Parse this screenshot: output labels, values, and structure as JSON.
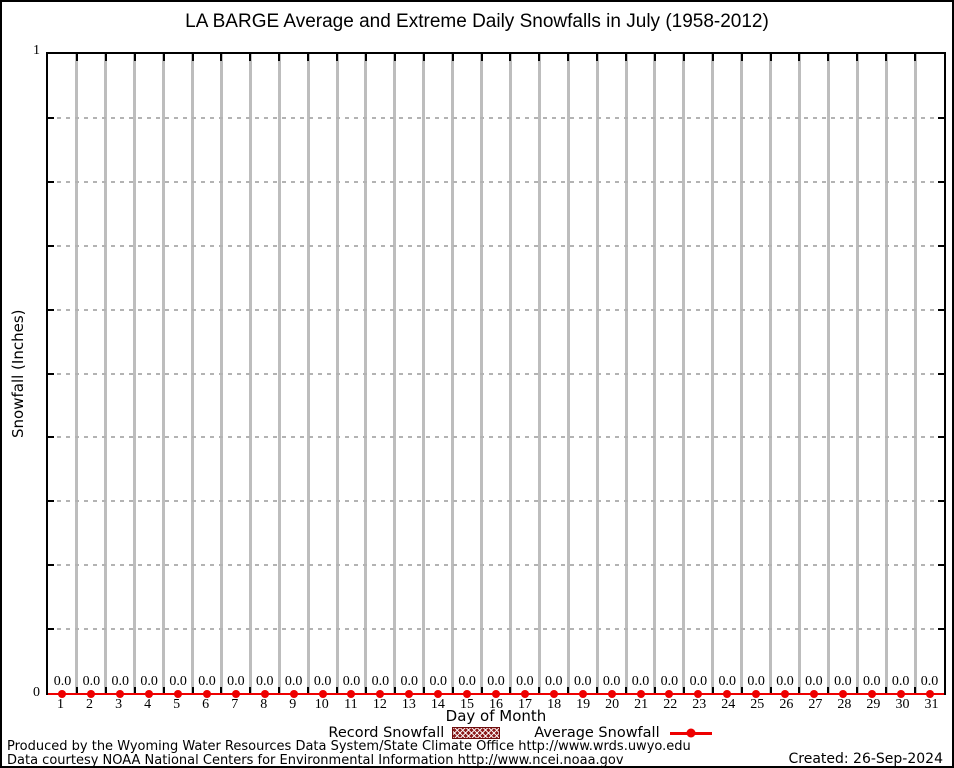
{
  "title": "LA BARGE Average and Extreme Daily Snowfalls in July (1958-2012)",
  "y_axis": {
    "title": "Snowfall (Inches)",
    "max_label": "1",
    "min_label": "0"
  },
  "x_axis": {
    "title": "Day of Month"
  },
  "legend": {
    "record": {
      "label": "Record Snowfall",
      "color": "#8b1a1a"
    },
    "average": {
      "label": "Average Snowfall",
      "color": "#ee0000"
    }
  },
  "footer": {
    "produced_by": "Produced by the Wyoming Water Resources Data System/State Climate Office http://www.wrds.uwyo.edu",
    "data_courtesy": "Data courtesy NOAA National Centers for Environmental Information http://www.ncei.noaa.gov",
    "created": "Created: 26-Sep-2024"
  },
  "chart_data": {
    "type": "line",
    "title": "LA BARGE Average and Extreme Daily Snowfalls in July (1958-2012)",
    "xlabel": "Day of Month",
    "ylabel": "Snowfall (Inches)",
    "x": [
      1,
      2,
      3,
      4,
      5,
      6,
      7,
      8,
      9,
      10,
      11,
      12,
      13,
      14,
      15,
      16,
      17,
      18,
      19,
      20,
      21,
      22,
      23,
      24,
      25,
      26,
      27,
      28,
      29,
      30,
      31
    ],
    "series": [
      {
        "name": "Record Snowfall",
        "style": "hatched-bar",
        "color": "#8b1a1a",
        "values": [
          0,
          0,
          0,
          0,
          0,
          0,
          0,
          0,
          0,
          0,
          0,
          0,
          0,
          0,
          0,
          0,
          0,
          0,
          0,
          0,
          0,
          0,
          0,
          0,
          0,
          0,
          0,
          0,
          0,
          0,
          0
        ]
      },
      {
        "name": "Average Snowfall",
        "style": "line-with-point-markers",
        "color": "#ee0000",
        "values": [
          0.0,
          0.0,
          0.0,
          0.0,
          0.0,
          0.0,
          0.0,
          0.0,
          0.0,
          0.0,
          0.0,
          0.0,
          0.0,
          0.0,
          0.0,
          0.0,
          0.0,
          0.0,
          0.0,
          0.0,
          0.0,
          0.0,
          0.0,
          0.0,
          0.0,
          0.0,
          0.0,
          0.0,
          0.0,
          0.0,
          0.0
        ]
      }
    ],
    "point_labels": [
      "0.0",
      "0.0",
      "0.0",
      "0.0",
      "0.0",
      "0.0",
      "0.0",
      "0.0",
      "0.0",
      "0.0",
      "0.0",
      "0.0",
      "0.0",
      "0.0",
      "0.0",
      "0.0",
      "0.0",
      "0.0",
      "0.0",
      "0.0",
      "0.0",
      "0.0",
      "0.0",
      "0.0",
      "0.0",
      "0.0",
      "0.0",
      "0.0",
      "0.0",
      "0.0",
      "0.0"
    ],
    "xlim": [
      0.5,
      31.5
    ],
    "ylim": [
      0,
      1
    ],
    "y_tick_step": 0.1,
    "y_labeled_ticks": [
      "0",
      "1"
    ],
    "grid": {
      "vertical_day_separators": true,
      "horizontal_dotted_step": 0.1
    },
    "legend_position": "bottom-center"
  }
}
